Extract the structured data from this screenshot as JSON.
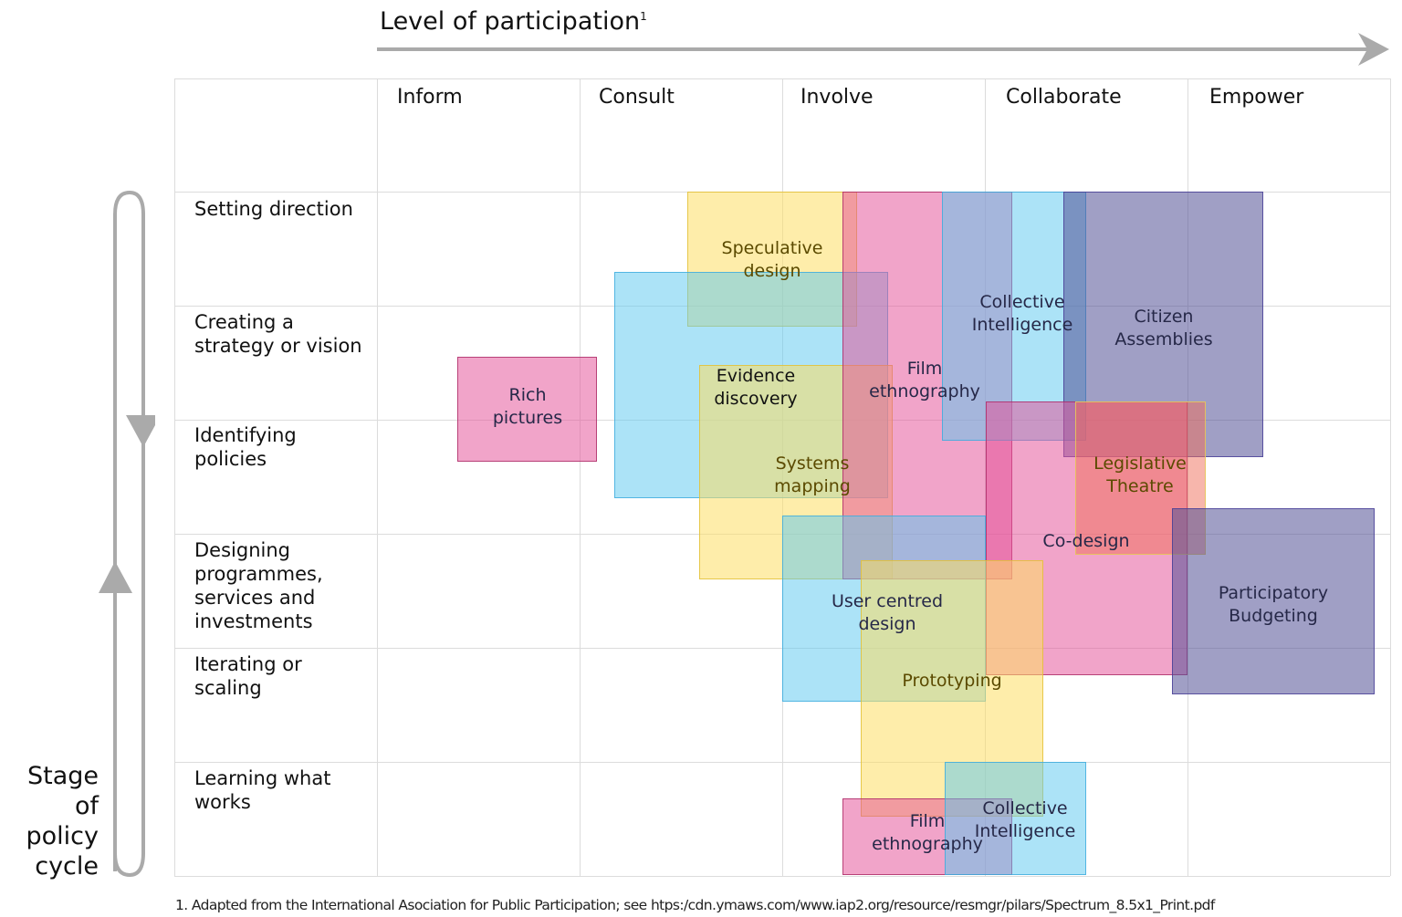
{
  "x_axis": {
    "title": "Level of participation",
    "footnote_marker": "1"
  },
  "y_axis": {
    "title": "Stage of policy cycle"
  },
  "columns": [
    "Inform",
    "Consult",
    "Involve",
    "Collaborate",
    "Empower"
  ],
  "rows": [
    "Setting direction",
    "Creating a strategy or vision",
    "Identifying policies",
    "Designing programmes, services and investments",
    "Iterating or scaling",
    "Learning what works"
  ],
  "methods": [
    {
      "label": "Speculative design",
      "color": "#FDDE64"
    },
    {
      "label": "Evidence discovery",
      "color": "#5AC8F0"
    },
    {
      "label": "Systems mapping",
      "color": "#FDDE64"
    },
    {
      "label": "Film ethnography",
      "color": "#E45098"
    },
    {
      "label": "Collective Intelligence",
      "color": "#5AC8F0"
    },
    {
      "label": "Citizen Assemblies",
      "color": "#525096"
    },
    {
      "label": "Rich pictures",
      "color": "#E45098"
    },
    {
      "label": "Co-design",
      "color": "#E45098"
    },
    {
      "label": "Legislative Theatre",
      "color": "#F06E5A"
    },
    {
      "label": "User centred design",
      "color": "#5AC8F0"
    },
    {
      "label": "Prototyping",
      "color": "#FDDE64"
    },
    {
      "label": "Participatory Budgeting",
      "color": "#525096"
    },
    {
      "label": "Film ethnography",
      "color": "#E45098"
    },
    {
      "label": "Collective Intelligence",
      "color": "#5AC8F0"
    }
  ],
  "footnote": "1. Adapted from the International Asociation for Public Participation; see htps:/cdn.ymaws.com/www.iap2.org/resource/resmgr/pilars/Spectrum_8.5x1_Print.pdf"
}
